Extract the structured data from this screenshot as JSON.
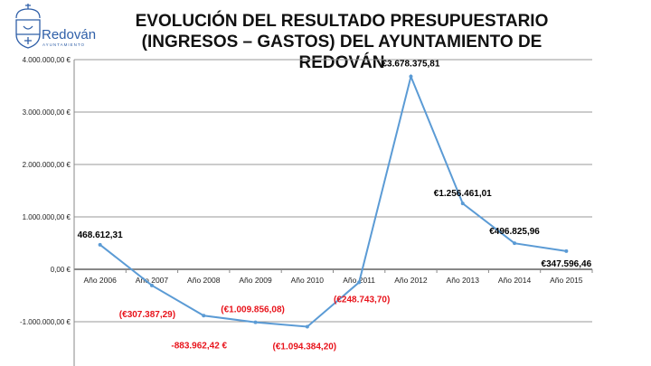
{
  "logo": {
    "name": "Redován",
    "subtitle": "AYUNTAMIENTO",
    "colors": {
      "blue": "#2f5fa8"
    }
  },
  "chart_data": {
    "type": "line",
    "title": "EVOLUCIÓN DEL RESULTADO PRESUPUESTARIO (INGRESOS – GASTOS) DEL AYUNTAMIENTO DE REDOVÁN",
    "categories": [
      "Año 2006",
      "Año 2007",
      "Año 2008",
      "Año 2009",
      "Año 2010",
      "Año 2011",
      "Año 2012",
      "Año 2013",
      "Año 2014",
      "Año 2015"
    ],
    "series": [
      {
        "values": [
          468612.31,
          -307387.29,
          -883962.42,
          -1009856.08,
          -1094384.2,
          -248743.7,
          3678375.81,
          1256461.01,
          496825.96,
          347596.46
        ],
        "color": "#5b9bd5"
      }
    ],
    "data_labels": [
      "468.612,31",
      "(€307.387,29)",
      "-883.962,42 €",
      "(€1.009.856,08)",
      "(€1.094.384,20)",
      "(€248.743,70)",
      "€3.678.375,81",
      "€1.256.461,01",
      "€496.825,96",
      "€347.596,46"
    ],
    "yticks": [
      4000000,
      3000000,
      2000000,
      1000000,
      0,
      -1000000
    ],
    "ytick_labels": [
      "4.000.000,00 €",
      "3.000.000,00 €",
      "2.000.000,00 €",
      "1.000.000,00 €",
      "0,00 €",
      "-1.000.000,00 €"
    ],
    "ylim": [
      -1850000,
      4000000
    ],
    "grid": true,
    "negative_label_color": "#e8141c",
    "positive_label_color": "#000000"
  }
}
